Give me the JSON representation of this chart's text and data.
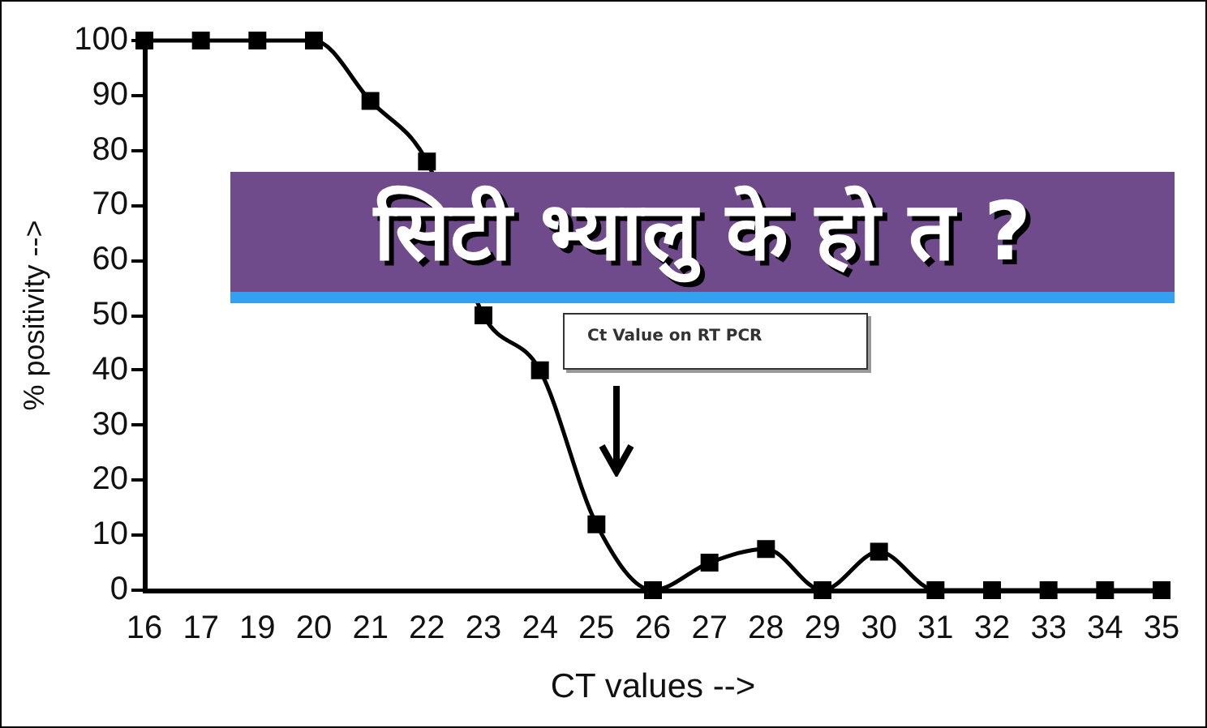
{
  "chart_data": {
    "type": "line",
    "title": "सिटी भ्यालु के हो त ?",
    "xlabel": "CT values -->",
    "ylabel": "% positivity -->",
    "categories": [
      "16",
      "17",
      "19",
      "20",
      "21",
      "22",
      "23",
      "24",
      "25",
      "26",
      "27",
      "28",
      "29",
      "30",
      "31",
      "32",
      "33",
      "34",
      "35"
    ],
    "values": [
      100,
      100,
      100,
      100,
      89,
      78,
      50,
      40,
      12,
      0,
      5,
      7.5,
      0,
      7,
      0,
      0,
      0,
      0,
      0
    ],
    "color": "#000000",
    "ylim": [
      0,
      100
    ],
    "yticks": [
      0,
      10,
      20,
      30,
      40,
      50,
      60,
      70,
      80,
      90,
      100
    ],
    "grid": false,
    "legend": false,
    "marker": "square",
    "line_style": "solid",
    "annotations": [
      "Ct Value on RT PCR"
    ]
  }
}
